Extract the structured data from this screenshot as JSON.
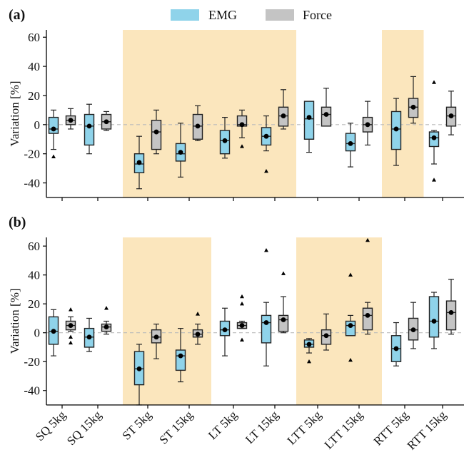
{
  "legend": {
    "items": [
      {
        "label": "EMG",
        "color": "#8fd3ea"
      },
      {
        "label": "Force",
        "color": "#c4c4c4"
      }
    ]
  },
  "colors": {
    "highlight": "#fbe6bd",
    "zero_line": "#bbbbbb"
  },
  "chart_data": [
    {
      "type": "box",
      "panel_label": "(a)",
      "ylabel": "Variation [%]",
      "ylim": [
        -50,
        65
      ],
      "yticks": [
        -40,
        -20,
        0,
        20,
        40,
        60
      ],
      "categories": [
        "SQ 5kg",
        "SQ 15kg",
        "ST 5kg",
        "ST 15kg",
        "LT 5kg",
        "LT 15kg",
        "LTT 5kg",
        "LTT 15kg",
        "RTT 5kg",
        "RTT 15kg"
      ],
      "highlighted_categories": [
        "ST 5kg",
        "ST 15kg",
        "LT 5kg",
        "LT 15kg",
        "RTT 5kg"
      ],
      "series": [
        {
          "name": "EMG",
          "boxes": [
            {
              "min": -17,
              "q1": -6,
              "median": -3,
              "q3": 5,
              "max": 10,
              "mean": -3,
              "outliers": [
                -22
              ]
            },
            {
              "min": -20,
              "q1": -14,
              "median": -1,
              "q3": 7,
              "max": 14,
              "mean": -1,
              "outliers": []
            },
            {
              "min": -44,
              "q1": -33,
              "median": -27,
              "q3": -20,
              "max": -8,
              "mean": -26,
              "outliers": []
            },
            {
              "min": -36,
              "q1": -25,
              "median": -20,
              "q3": -13,
              "max": 1,
              "mean": -19,
              "outliers": []
            },
            {
              "min": -23,
              "q1": -20,
              "median": -11,
              "q3": -4,
              "max": 5,
              "mean": -11,
              "outliers": []
            },
            {
              "min": -18,
              "q1": -14,
              "median": -8,
              "q3": -2,
              "max": 6,
              "mean": -8,
              "outliers": [
                -32
              ]
            },
            {
              "min": -19,
              "q1": -10,
              "median": 4,
              "q3": 16,
              "max": 16,
              "mean": 5,
              "outliers": []
            },
            {
              "min": -29,
              "q1": -18,
              "median": -13,
              "q3": -6,
              "max": 1,
              "mean": -13,
              "outliers": []
            },
            {
              "min": -28,
              "q1": -17,
              "median": -3,
              "q3": 9,
              "max": 18,
              "mean": -3,
              "outliers": []
            },
            {
              "min": -27,
              "q1": -15,
              "median": -9,
              "q3": -5,
              "max": -4,
              "mean": -9,
              "outliers": [
                -38,
                29
              ]
            }
          ]
        },
        {
          "name": "Force",
          "boxes": [
            {
              "min": -3,
              "q1": 0,
              "median": 3,
              "q3": 6,
              "max": 11,
              "mean": 3,
              "outliers": []
            },
            {
              "min": -4,
              "q1": -3,
              "median": 2,
              "q3": 7,
              "max": 9,
              "mean": 2,
              "outliers": []
            },
            {
              "min": -20,
              "q1": -17,
              "median": -5,
              "q3": 3,
              "max": 10,
              "mean": -5,
              "outliers": []
            },
            {
              "min": -11,
              "q1": -10,
              "median": -1,
              "q3": 7,
              "max": 13,
              "mean": -1,
              "outliers": []
            },
            {
              "min": -9,
              "q1": -1,
              "median": 0,
              "q3": 6,
              "max": 10,
              "mean": 0,
              "outliers": [
                -15
              ]
            },
            {
              "min": -3,
              "q1": -1,
              "median": 6,
              "q3": 12,
              "max": 24,
              "mean": 6,
              "outliers": []
            },
            {
              "min": -1,
              "q1": -1,
              "median": 7,
              "q3": 12,
              "max": 25,
              "mean": 7,
              "outliers": []
            },
            {
              "min": -14,
              "q1": -5,
              "median": 0,
              "q3": 5,
              "max": 16,
              "mean": 0,
              "outliers": []
            },
            {
              "min": 1,
              "q1": 5,
              "median": 12,
              "q3": 18,
              "max": 33,
              "mean": 12,
              "outliers": []
            },
            {
              "min": -7,
              "q1": -1,
              "median": 6,
              "q3": 12,
              "max": 23,
              "mean": 6,
              "outliers": []
            }
          ]
        }
      ]
    },
    {
      "type": "box",
      "panel_label": "(b)",
      "ylabel": "Variation [%]",
      "ylim": [
        -50,
        66
      ],
      "yticks": [
        -40,
        -20,
        0,
        20,
        40,
        60
      ],
      "categories": [
        "SQ 5kg",
        "SQ 15kg",
        "ST 5kg",
        "ST 15kg",
        "LT 5kg",
        "LT 15kg",
        "LTT 5kg",
        "LTT 15kg",
        "RTT 5kg",
        "RTT 15kg"
      ],
      "highlighted_categories": [
        "ST 5kg",
        "ST 15kg",
        "LTT 5kg",
        "LTT 15kg"
      ],
      "series": [
        {
          "name": "EMG",
          "boxes": [
            {
              "min": -16,
              "q1": -8,
              "median": 1,
              "q3": 11,
              "max": 16,
              "mean": 1,
              "outliers": []
            },
            {
              "min": -13,
              "q1": -10,
              "median": -3,
              "q3": 3,
              "max": 10,
              "mean": -3,
              "outliers": []
            },
            {
              "min": -50,
              "q1": -36,
              "median": -25,
              "q3": -13,
              "max": -8,
              "mean": -25,
              "outliers": []
            },
            {
              "min": -34,
              "q1": -26,
              "median": -16,
              "q3": -12,
              "max": 3,
              "mean": -16,
              "outliers": []
            },
            {
              "min": -16,
              "q1": -2,
              "median": 2,
              "q3": 8,
              "max": 17,
              "mean": 2,
              "outliers": []
            },
            {
              "min": -23,
              "q1": -7,
              "median": 7,
              "q3": 12,
              "max": 21,
              "mean": 7,
              "outliers": [
                57
              ]
            },
            {
              "min": -14,
              "q1": -10,
              "median": -8,
              "q3": -5,
              "max": -4,
              "mean": -8,
              "outliers": [
                -20
              ]
            },
            {
              "min": -2,
              "q1": -2,
              "median": 5,
              "q3": 8,
              "max": 12,
              "mean": 5,
              "outliers": [
                -19,
                40
              ]
            },
            {
              "min": -23,
              "q1": -20,
              "median": -11,
              "q3": -2,
              "max": 7,
              "mean": -11,
              "outliers": []
            },
            {
              "min": -11,
              "q1": -3,
              "median": 8,
              "q3": 25,
              "max": 28,
              "mean": 8,
              "outliers": []
            }
          ]
        },
        {
          "name": "Force",
          "boxes": [
            {
              "min": 1,
              "q1": 2,
              "median": 5,
              "q3": 8,
              "max": 11,
              "mean": 5,
              "outliers": [
                -7,
                -3,
                16
              ]
            },
            {
              "min": -1,
              "q1": 1,
              "median": 4,
              "q3": 6,
              "max": 8,
              "mean": 4,
              "outliers": [
                17
              ]
            },
            {
              "min": -18,
              "q1": -7,
              "median": -3,
              "q3": 2,
              "max": 6,
              "mean": -3,
              "outliers": []
            },
            {
              "min": -8,
              "q1": -3,
              "median": -1,
              "q3": 2,
              "max": 6,
              "mean": -1,
              "outliers": [
                13
              ]
            },
            {
              "min": 3,
              "q1": 3,
              "median": 5,
              "q3": 7,
              "max": 8,
              "mean": 5,
              "outliers": [
                -5,
                20,
                25
              ]
            },
            {
              "min": 0,
              "q1": 1,
              "median": 9,
              "q3": 12,
              "max": 25,
              "mean": 9,
              "outliers": [
                41
              ]
            },
            {
              "min": -12,
              "q1": -8,
              "median": -2,
              "q3": 2,
              "max": 13,
              "mean": -2,
              "outliers": []
            },
            {
              "min": -1,
              "q1": 2,
              "median": 12,
              "q3": 17,
              "max": 21,
              "mean": 12,
              "outliers": [
                64
              ]
            },
            {
              "min": -11,
              "q1": -5,
              "median": 2,
              "q3": 10,
              "max": 21,
              "mean": 2,
              "outliers": []
            },
            {
              "min": -1,
              "q1": 2,
              "median": 14,
              "q3": 22,
              "max": 37,
              "mean": 14,
              "outliers": []
            }
          ]
        }
      ]
    }
  ]
}
